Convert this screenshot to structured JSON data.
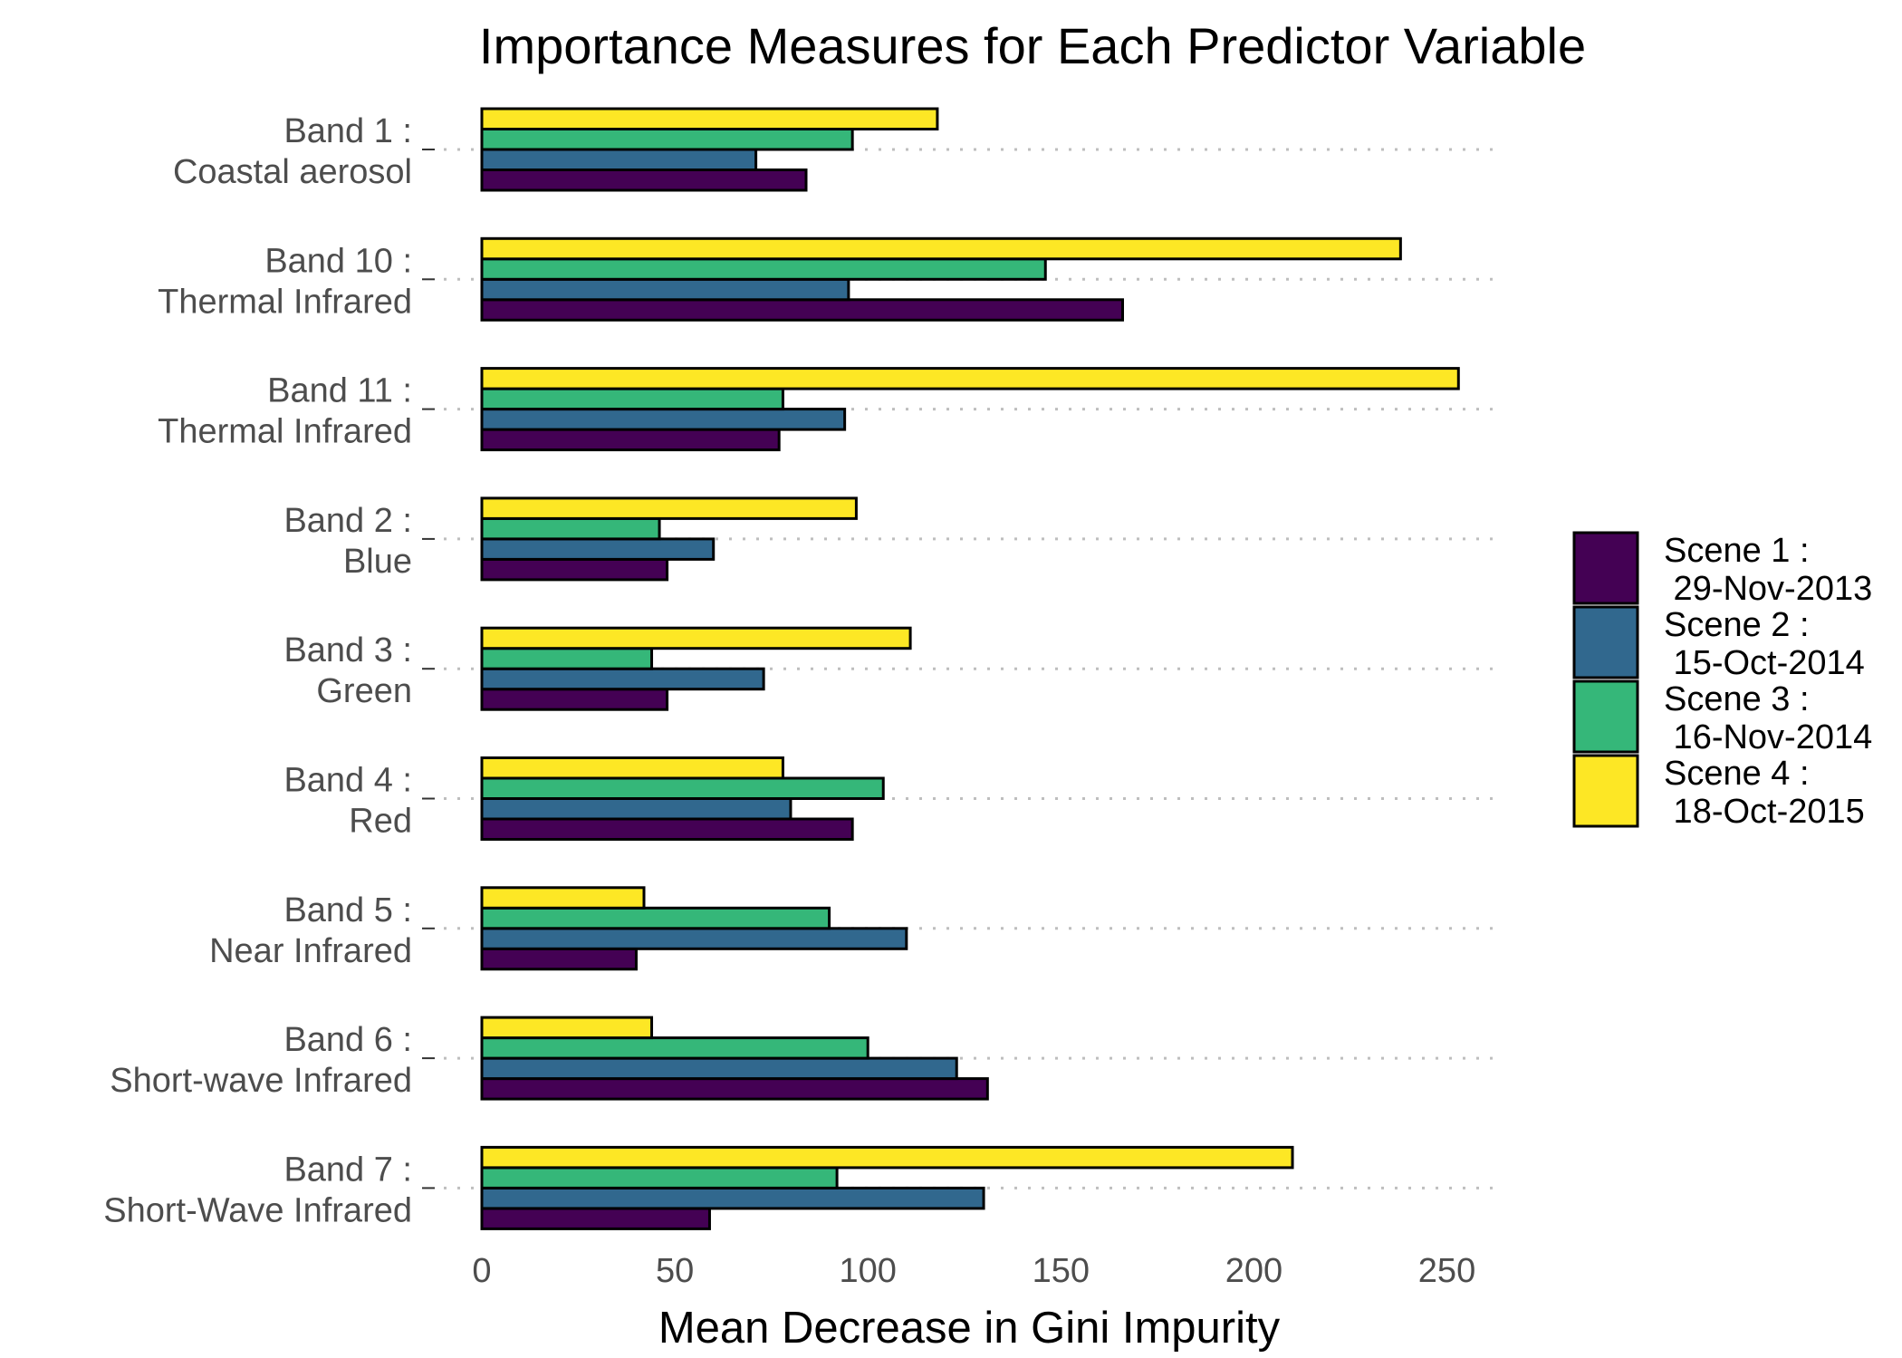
{
  "chart_data": {
    "type": "bar",
    "orientation": "horizontal",
    "title": "Importance Measures for Each Predictor Variable",
    "xlabel": "Mean Decrease in Gini Impurity",
    "ylabel": "",
    "xlim": [
      0,
      262
    ],
    "xticks": [
      0,
      50,
      100,
      150,
      200,
      250
    ],
    "grid": "horizontal dotted",
    "legend_position": "right",
    "categories": [
      [
        "Band 1 :",
        "Coastal aerosol"
      ],
      [
        "Band 10 :",
        "Thermal Infrared"
      ],
      [
        "Band 11 :",
        "Thermal Infrared"
      ],
      [
        "Band 2 :",
        "Blue"
      ],
      [
        "Band 3 :",
        "Green"
      ],
      [
        "Band 4 :",
        "Red"
      ],
      [
        "Band 5 :",
        "Near Infrared"
      ],
      [
        "Band 6 :",
        "Short-wave Infrared"
      ],
      [
        "Band 7 :",
        "Short-Wave Infrared"
      ]
    ],
    "series": [
      {
        "name": [
          "Scene 1 :",
          " 29-Nov-2013"
        ],
        "color": "#440154",
        "values": [
          84,
          166,
          77,
          48,
          48,
          96,
          40,
          131,
          59
        ]
      },
      {
        "name": [
          "Scene 2 :",
          " 15-Oct-2014"
        ],
        "color": "#31688e",
        "values": [
          71,
          95,
          94,
          60,
          73,
          80,
          110,
          123,
          130
        ]
      },
      {
        "name": [
          "Scene 3 :",
          " 16-Nov-2014"
        ],
        "color": "#35b779",
        "values": [
          96,
          146,
          78,
          46,
          44,
          104,
          90,
          100,
          92
        ]
      },
      {
        "name": [
          "Scene 4 :",
          " 18-Oct-2015"
        ],
        "color": "#fde725",
        "values": [
          118,
          238,
          253,
          97,
          111,
          78,
          42,
          44,
          210
        ]
      }
    ]
  }
}
